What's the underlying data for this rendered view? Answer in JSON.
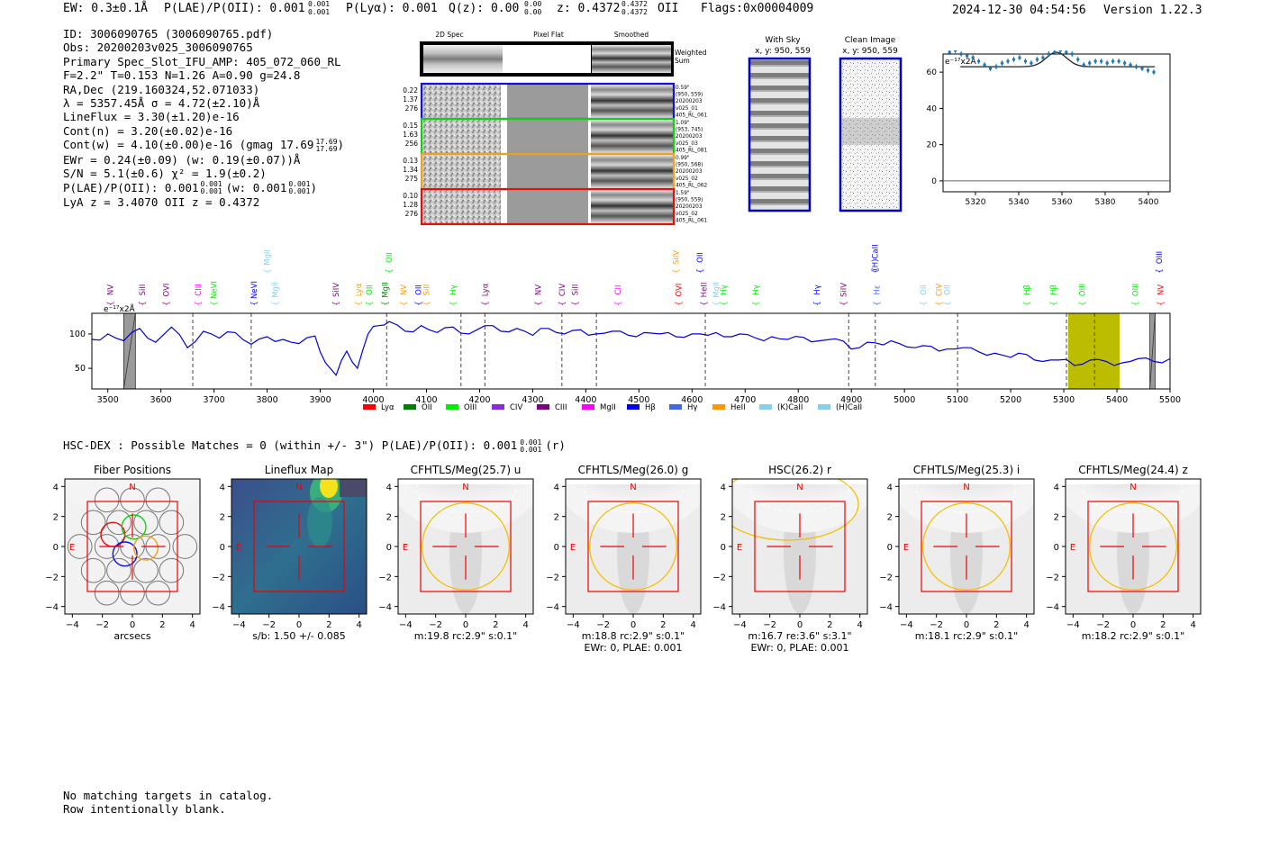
{
  "header": {
    "ew": "EW: 0.3±0.1Å",
    "plae": "P(LAE)/P(OII): 0.001",
    "plae_sup": "0.001",
    "plae_sub": "0.001",
    "plya": "P(Lyα): 0.001",
    "qz": "Q(z): 0.00",
    "qz_sup": "0.00",
    "qz_sub": "0.00",
    "z": "z: 0.4372",
    "z_sup": "0.4372",
    "z_sub": "0.4372",
    "z_line": "OII",
    "flags": "Flags:0x00004009",
    "timestamp": "2024-12-30 04:54:56",
    "version": "Version 1.22.3"
  },
  "info": [
    "ID: 3006090765 (3006090765.pdf)",
    "Obs: 20200203v025_3006090765",
    "Primary Spec_Slot_IFU_AMP: 405_072_060_RL",
    "F=2.2\"  T=0.153  N=1.26  A=0.90  g=24.8",
    "RA,Dec (219.160324,52.071033)",
    "λ = 5357.45Å  σ = 4.72(±2.10)Å",
    "LineFlux = 3.30(±1.20)e-16",
    "Cont(n) = 3.20(±0.02)e-16",
    "Cont(w) = 4.10(±0.00)e-16 (gmag 17.69",
    "EWr = 0.24(±0.09) (w: 0.19(±0.07))Å",
    "S/N = 5.1(±0.6)  χ² = 1.9(±0.2)",
    "P(LAE)/P(OII): 0.001",
    "LyA z = 3.4070  OII z = 0.4372"
  ],
  "info_extras": {
    "gmag_sup": "17.69",
    "gmag_sub": "17.69",
    "gmag_close": ")",
    "plae_sup": "0.001",
    "plae_sub": "0.001",
    "plae_w": "(w: 0.001",
    "plae_w_sup": "0.001",
    "plae_w_sub": "0.001",
    "plae_w_close": ")"
  },
  "cutouts": {
    "col_headers": [
      "2D Spec",
      "Pixel Flat",
      "Smoothed"
    ],
    "weighted_label": [
      "Weighted",
      "Sum"
    ],
    "rows": [
      {
        "left": [
          "0.22",
          "1.37",
          "276"
        ],
        "right": [
          "0.59\"",
          "(950, 559)",
          "20200203",
          "v025_01",
          "405_RL_061"
        ],
        "color": "#1010e0"
      },
      {
        "left": [
          "0.15",
          "1.63",
          "256"
        ],
        "right": [
          "1.09\"",
          "(953, 745)",
          "20200203",
          "v025_03",
          "405_RL_081"
        ],
        "color": "#10d010"
      },
      {
        "left": [
          "0.13",
          "1.34",
          "275"
        ],
        "right": [
          "0.99\"",
          "(950, 568)",
          "20200203",
          "v025_02",
          "405_RL_062"
        ],
        "color": "#f0a020"
      },
      {
        "left": [
          "0.10",
          "1.28",
          "276"
        ],
        "right": [
          "1.59\"",
          "(950, 559)",
          "20200203",
          "v025_02",
          "405_RL_061"
        ],
        "color": "#e01010"
      }
    ]
  },
  "sky_panels": {
    "with_sky": [
      "With Sky",
      "x, y: 950, 559"
    ],
    "clean": [
      "Clean Image",
      "x, y: 950, 559"
    ]
  },
  "zoom_chart": {
    "unit": "e⁻¹⁷x2Å",
    "x_ticks": [
      "5320",
      "5340",
      "5360",
      "5380",
      "5400"
    ],
    "y_ticks": [
      "0",
      "20",
      "40",
      "60"
    ]
  },
  "chart_data": {
    "type": "line",
    "title": "",
    "xlabel": "",
    "ylabel": "",
    "unit": "e⁻¹⁷x2Å",
    "xlim": [
      3470,
      5500
    ],
    "ylim": [
      20,
      130
    ],
    "x_ticks": [
      3500,
      3600,
      3700,
      3800,
      3900,
      4000,
      4100,
      4200,
      4300,
      4400,
      4500,
      4600,
      4700,
      4800,
      4900,
      5000,
      5100,
      5200,
      5300,
      5400,
      5500
    ],
    "y_ticks": [
      50,
      100
    ],
    "series": [
      {
        "color": "#0000dd",
        "x": [
          3470,
          3500,
          3530,
          3560,
          3590,
          3620,
          3650,
          3680,
          3710,
          3740,
          3770,
          3800,
          3830,
          3860,
          3890,
          3910,
          3930,
          3950,
          3970,
          3990,
          4010,
          4030,
          4060,
          4090,
          4120,
          4150,
          4180,
          4210,
          4240,
          4270,
          4300,
          4330,
          4360,
          4390,
          4420,
          4450,
          4480,
          4510,
          4540,
          4570,
          4600,
          4630,
          4660,
          4690,
          4720,
          4750,
          4780,
          4810,
          4840,
          4870,
          4900,
          4930,
          4960,
          4990,
          5020,
          5050,
          5080,
          5110,
          5140,
          5170,
          5200,
          5230,
          5260,
          5290,
          5320,
          5350,
          5380,
          5410,
          5440,
          5470,
          5500
        ],
        "values": [
          92,
          100,
          90,
          108,
          88,
          110,
          80,
          104,
          94,
          102,
          85,
          96,
          92,
          86,
          97,
          58,
          40,
          75,
          50,
          100,
          112,
          118,
          104,
          112,
          102,
          110,
          100,
          112,
          104,
          108,
          98,
          108,
          100,
          106,
          100,
          104,
          98,
          102,
          100,
          96,
          100,
          98,
          96,
          100,
          94,
          96,
          92,
          95,
          90,
          93,
          78,
          88,
          84,
          86,
          80,
          82,
          78,
          80,
          74,
          72,
          66,
          70,
          60,
          62,
          54,
          62,
          60,
          58,
          64,
          60,
          64
        ]
      }
    ],
    "vlines": [
      3660,
      3770,
      4025,
      4165,
      4210,
      4355,
      4420,
      4625,
      4895,
      4945,
      5100,
      5305,
      5358
    ],
    "shaded": [
      [
        3530,
        3552
      ],
      [
        5462,
        5472
      ]
    ],
    "highlight": [
      5308,
      5405
    ],
    "legend": [
      "Lyα",
      "OII",
      "OIII",
      "CIV",
      "CIII",
      "MgII",
      "Hβ",
      "Hγ",
      "HeII",
      "(K)CaII",
      "(H)CaII"
    ],
    "legend_colors": [
      "#ff0000",
      "#008000",
      "#00ee00",
      "#8a2be2",
      "#800080",
      "#ff00ff",
      "#0000ff",
      "#4169e1",
      "#ff9900",
      "#87ceeb",
      "#87ceeb"
    ],
    "line_labels": [
      {
        "text": "NV",
        "x": 3505,
        "color": "#800080",
        "tier": 0
      },
      {
        "text": "SiII",
        "x": 3565,
        "color": "#800080",
        "tier": 0
      },
      {
        "text": "OVI",
        "x": 3610,
        "color": "#800080",
        "tier": 0
      },
      {
        "text": "CIII",
        "x": 3670,
        "color": "#ff00ff",
        "tier": 0
      },
      {
        "text": "NeVI",
        "x": 3700,
        "color": "#00ee00",
        "tier": 0
      },
      {
        "text": "NeVI",
        "x": 3775,
        "color": "#0000ff",
        "tier": 0
      },
      {
        "text": "MgII",
        "x": 3800,
        "color": "#87ceeb",
        "tier": 1
      },
      {
        "text": "MgII",
        "x": 3815,
        "color": "#87ceeb",
        "tier": 0
      },
      {
        "text": "SiIV",
        "x": 3930,
        "color": "#800080",
        "tier": 0
      },
      {
        "text": "Lyα",
        "x": 3972,
        "color": "#ff9900",
        "tier": 0
      },
      {
        "text": "OII",
        "x": 3992,
        "color": "#00ee00",
        "tier": 0
      },
      {
        "text": "MgII",
        "x": 4022,
        "color": "#008000",
        "tier": 0
      },
      {
        "text": "OII",
        "x": 4030,
        "color": "#00ee00",
        "tier": 1
      },
      {
        "text": "NV",
        "x": 4057,
        "color": "#ff9900",
        "tier": 0
      },
      {
        "text": "OII",
        "x": 4085,
        "color": "#0000ff",
        "tier": 0
      },
      {
        "text": "SiII",
        "x": 4100,
        "color": "#ff9900",
        "tier": 0
      },
      {
        "text": "Hγ",
        "x": 4150,
        "color": "#00ee00",
        "tier": 0
      },
      {
        "text": "Lyα",
        "x": 4210,
        "color": "#800080",
        "tier": 0
      },
      {
        "text": "NV",
        "x": 4310,
        "color": "#800080",
        "tier": 0
      },
      {
        "text": "CIV",
        "x": 4355,
        "color": "#800080",
        "tier": 0
      },
      {
        "text": "SiII",
        "x": 4380,
        "color": "#800080",
        "tier": 0
      },
      {
        "text": "CII",
        "x": 4460,
        "color": "#ff00ff",
        "tier": 0
      },
      {
        "text": "SiIV",
        "x": 4570,
        "color": "#ff9900",
        "tier": 1
      },
      {
        "text": "OVI",
        "x": 4575,
        "color": "#ff0000",
        "tier": 0
      },
      {
        "text": "OII",
        "x": 4615,
        "color": "#0000ff",
        "tier": 1
      },
      {
        "text": "HeII",
        "x": 4622,
        "color": "#800080",
        "tier": 0
      },
      {
        "text": "MgII",
        "x": 4645,
        "color": "#87ceeb",
        "tier": 0
      },
      {
        "text": "Hγ",
        "x": 4660,
        "color": "#00ee00",
        "tier": 0
      },
      {
        "text": "Hγ",
        "x": 4720,
        "color": "#00ee00",
        "tier": 0
      },
      {
        "text": "Hγ",
        "x": 4835,
        "color": "#0000ff",
        "tier": 0
      },
      {
        "text": "SiIV",
        "x": 4885,
        "color": "#800080",
        "tier": 0
      },
      {
        "text": "(H)CaII",
        "x": 4945,
        "color": "#0000ff",
        "tier": 1
      },
      {
        "text": "Hε",
        "x": 4948,
        "color": "#4169e1",
        "tier": 0
      },
      {
        "text": "OII",
        "x": 5035,
        "color": "#87ceeb",
        "tier": 0
      },
      {
        "text": "CIV",
        "x": 5065,
        "color": "#ff9900",
        "tier": 0
      },
      {
        "text": "OII",
        "x": 5080,
        "color": "#87ceeb",
        "tier": 0
      },
      {
        "text": "Hβ",
        "x": 5230,
        "color": "#00ee00",
        "tier": 0
      },
      {
        "text": "Hβ",
        "x": 5280,
        "color": "#00ee00",
        "tier": 0
      },
      {
        "text": "OIII",
        "x": 5335,
        "color": "#00ee00",
        "tier": 0
      },
      {
        "text": "OIII",
        "x": 5435,
        "color": "#00ee00",
        "tier": 0
      },
      {
        "text": "OIII",
        "x": 5480,
        "color": "#0000ff",
        "tier": 1
      },
      {
        "text": "NV",
        "x": 5482,
        "color": "#ff0000",
        "tier": 0
      }
    ]
  },
  "match_line": {
    "text": "HSC-DEX : Possible Matches = 0 (within +/- 3\")  P(LAE)/P(OII): 0.001",
    "sup": "0.001",
    "sub": "0.001",
    "tail": "(r)"
  },
  "thumbs": [
    {
      "title": "Fiber Positions",
      "sub1": "arcsecs",
      "sub2": "",
      "kind": "fiber"
    },
    {
      "title": "Lineflux Map",
      "sub1": "s/b: 1.50 +/- 0.085",
      "sub2": "",
      "kind": "flux"
    },
    {
      "title": "CFHTLS/Meg(25.7) u",
      "sub1": "m:19.8 rc:2.9\"  s:0.1\"",
      "sub2": "",
      "kind": "img"
    },
    {
      "title": "CFHTLS/Meg(26.0) g",
      "sub1": "m:18.8 rc:2.9\"  s:0.1\"",
      "sub2": "EWr: 0, PLAE: 0.001",
      "kind": "img"
    },
    {
      "title": "HSC(26.2) r",
      "sub1": "m:16.7  re:3.6\"  s:3.1\"",
      "sub2": "EWr: 0, PLAE: 0.001",
      "kind": "imgr"
    },
    {
      "title": "CFHTLS/Meg(25.3) i",
      "sub1": "m:18.1 rc:2.9\"  s:0.1\"",
      "sub2": "",
      "kind": "img"
    },
    {
      "title": "CFHTLS/Meg(24.4) z",
      "sub1": "m:18.2 rc:2.9\"  s:0.1\"",
      "sub2": "",
      "kind": "img"
    }
  ],
  "thumb_axes": {
    "x_ticks": [
      "−4",
      "−2",
      "0",
      "2",
      "4"
    ],
    "y_ticks": [
      "4",
      "2",
      "0",
      "−2",
      "−4"
    ],
    "north": "N",
    "east": "E"
  },
  "footer": [
    "No matching targets in catalog.",
    "Row intentionally blank."
  ]
}
